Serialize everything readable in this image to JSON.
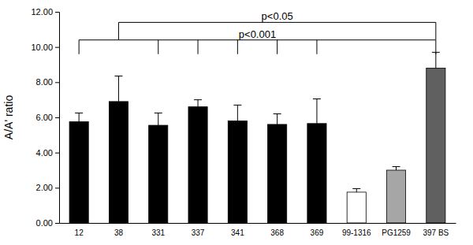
{
  "chart_data": {
    "type": "bar",
    "categories": [
      "12",
      "38",
      "331",
      "337",
      "341",
      "368",
      "369",
      "99-1316",
      "PG1259",
      "397 BS"
    ],
    "values": [
      5.75,
      6.9,
      5.55,
      6.6,
      5.8,
      5.6,
      5.65,
      1.75,
      3.0,
      8.8
    ],
    "errors": [
      0.5,
      1.45,
      0.7,
      0.4,
      0.9,
      0.6,
      1.4,
      0.2,
      0.2,
      0.9
    ],
    "colors": [
      "#000000",
      "#000000",
      "#000000",
      "#000000",
      "#000000",
      "#000000",
      "#000000",
      "#ffffff",
      "#a6a6a6",
      "#606060"
    ],
    "y_label": "A/A' ratio",
    "ylim": [
      0,
      12
    ],
    "yticks": [
      {
        "value": 0,
        "label": "0.00"
      },
      {
        "value": 2,
        "label": "2.00"
      },
      {
        "value": 4,
        "label": "4.00"
      },
      {
        "value": 6,
        "label": "6.00"
      },
      {
        "value": 8,
        "label": "8.00"
      },
      {
        "value": 10,
        "label": "10.00"
      },
      {
        "value": 12,
        "label": "12.00"
      }
    ],
    "annotations": [
      {
        "text": "p<0.05",
        "categories": [
          "38",
          "397 BS"
        ],
        "y": 11.4
      },
      {
        "text": "p<0.001",
        "categories": [
          "12",
          "331",
          "337",
          "341",
          "368",
          "369",
          "397 BS"
        ],
        "y": 10.4
      }
    ]
  }
}
